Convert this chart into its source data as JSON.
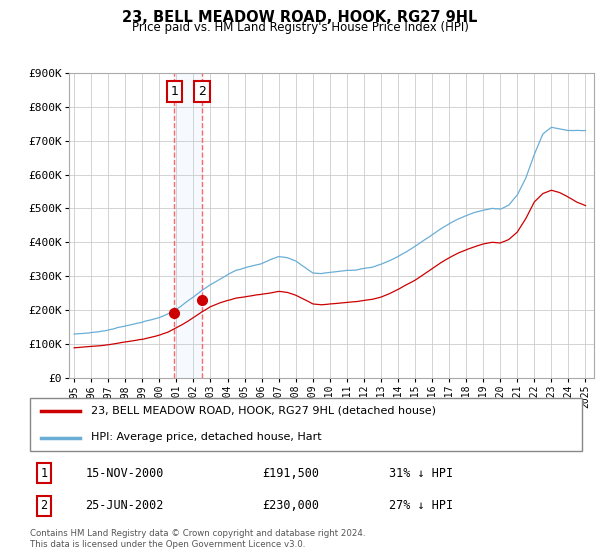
{
  "title": "23, BELL MEADOW ROAD, HOOK, RG27 9HL",
  "subtitle": "Price paid vs. HM Land Registry's House Price Index (HPI)",
  "legend_line1": "23, BELL MEADOW ROAD, HOOK, RG27 9HL (detached house)",
  "legend_line2": "HPI: Average price, detached house, Hart",
  "transaction1_date": "15-NOV-2000",
  "transaction1_price": "£191,500",
  "transaction1_hpi": "31% ↓ HPI",
  "transaction1_year": 2000.875,
  "transaction1_value": 191500,
  "transaction2_date": "25-JUN-2002",
  "transaction2_price": "£230,000",
  "transaction2_hpi": "27% ↓ HPI",
  "transaction2_year": 2002.5,
  "transaction2_value": 230000,
  "footnote": "Contains HM Land Registry data © Crown copyright and database right 2024.\nThis data is licensed under the Open Government Licence v3.0.",
  "hpi_color": "#6aaed6",
  "price_color": "#cc0000",
  "vline_color": "#ff6666",
  "span_color": "#ddeeff",
  "ylim": [
    0,
    900000
  ],
  "yticks": [
    0,
    100000,
    200000,
    300000,
    400000,
    500000,
    600000,
    700000,
    800000,
    900000
  ],
  "xlim_start": 1994.7,
  "xlim_end": 2025.5,
  "background_color": "#ffffff",
  "grid_color": "#cccccc",
  "hpi_key_years": [
    1995,
    1995.5,
    1996,
    1996.5,
    1997,
    1997.5,
    1998,
    1998.5,
    1999,
    1999.5,
    2000,
    2000.5,
    2001,
    2001.5,
    2002,
    2002.5,
    2003,
    2003.5,
    2004,
    2004.5,
    2005,
    2005.5,
    2006,
    2006.5,
    2007,
    2007.5,
    2008,
    2008.5,
    2009,
    2009.5,
    2010,
    2010.5,
    2011,
    2011.5,
    2012,
    2012.5,
    2013,
    2013.5,
    2014,
    2014.5,
    2015,
    2015.5,
    2016,
    2016.5,
    2017,
    2017.5,
    2018,
    2018.5,
    2019,
    2019.5,
    2020,
    2020.5,
    2021,
    2021.5,
    2022,
    2022.5,
    2023,
    2023.5,
    2024,
    2024.5,
    2025
  ],
  "hpi_key_vals": [
    130000,
    132000,
    135000,
    138000,
    142000,
    148000,
    153000,
    158000,
    163000,
    170000,
    178000,
    188000,
    202000,
    220000,
    238000,
    258000,
    275000,
    290000,
    305000,
    318000,
    325000,
    332000,
    338000,
    348000,
    358000,
    355000,
    345000,
    328000,
    310000,
    308000,
    312000,
    315000,
    318000,
    318000,
    322000,
    326000,
    335000,
    345000,
    358000,
    372000,
    388000,
    405000,
    422000,
    440000,
    455000,
    468000,
    478000,
    488000,
    495000,
    500000,
    498000,
    510000,
    540000,
    590000,
    660000,
    720000,
    740000,
    735000,
    730000,
    730000,
    730000
  ],
  "red_key_years": [
    1995,
    1995.5,
    1996,
    1996.5,
    1997,
    1997.5,
    1998,
    1998.5,
    1999,
    1999.5,
    2000,
    2000.5,
    2001,
    2001.5,
    2002,
    2002.5,
    2003,
    2003.5,
    2004,
    2004.5,
    2005,
    2005.5,
    2006,
    2006.5,
    2007,
    2007.5,
    2008,
    2008.5,
    2009,
    2009.5,
    2010,
    2010.5,
    2011,
    2011.5,
    2012,
    2012.5,
    2013,
    2013.5,
    2014,
    2014.5,
    2015,
    2015.5,
    2016,
    2016.5,
    2017,
    2017.5,
    2018,
    2018.5,
    2019,
    2019.5,
    2020,
    2020.5,
    2021,
    2021.5,
    2022,
    2022.5,
    2023,
    2023.5,
    2024,
    2024.5,
    2025
  ],
  "red_key_vals": [
    90000,
    92000,
    94000,
    96000,
    99000,
    103000,
    107000,
    111000,
    115000,
    120000,
    126000,
    135000,
    148000,
    162000,
    178000,
    195000,
    210000,
    220000,
    228000,
    235000,
    238000,
    242000,
    246000,
    250000,
    255000,
    252000,
    244000,
    232000,
    218000,
    215000,
    218000,
    220000,
    222000,
    224000,
    227000,
    231000,
    238000,
    248000,
    260000,
    274000,
    288000,
    305000,
    322000,
    340000,
    355000,
    368000,
    378000,
    388000,
    395000,
    400000,
    398000,
    408000,
    430000,
    470000,
    520000,
    545000,
    555000,
    548000,
    535000,
    520000,
    510000
  ]
}
